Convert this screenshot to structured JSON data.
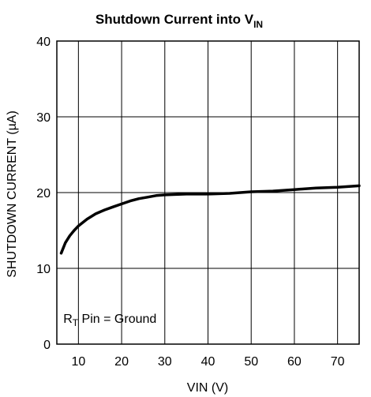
{
  "chart_data": {
    "type": "line",
    "title": {
      "main": "Shutdown Current into V",
      "sub": "IN"
    },
    "xlabel": "VIN (V)",
    "ylabel": "SHUTDOWN CURRENT (µA)",
    "xlim": [
      5,
      75
    ],
    "ylim": [
      0,
      40
    ],
    "x_ticks": [
      10,
      20,
      30,
      40,
      50,
      60,
      70
    ],
    "y_ticks": [
      0,
      10,
      20,
      30,
      40
    ],
    "x_tick_labels": [
      "10",
      "20",
      "30",
      "40",
      "50",
      "60",
      "70"
    ],
    "y_tick_labels": [
      "0",
      "10",
      "20",
      "30",
      "40"
    ],
    "grid": true,
    "series": [
      {
        "color": "#000000",
        "points": [
          [
            6,
            12.0
          ],
          [
            7,
            13.4
          ],
          [
            8,
            14.3
          ],
          [
            9,
            15.0
          ],
          [
            10,
            15.6
          ],
          [
            12,
            16.5
          ],
          [
            14,
            17.2
          ],
          [
            16,
            17.7
          ],
          [
            18,
            18.1
          ],
          [
            20,
            18.5
          ],
          [
            22,
            18.9
          ],
          [
            24,
            19.2
          ],
          [
            26,
            19.4
          ],
          [
            28,
            19.6
          ],
          [
            30,
            19.7
          ],
          [
            35,
            19.8
          ],
          [
            40,
            19.8
          ],
          [
            45,
            19.9
          ],
          [
            50,
            20.1
          ],
          [
            55,
            20.2
          ],
          [
            60,
            20.4
          ],
          [
            65,
            20.6
          ],
          [
            70,
            20.7
          ],
          [
            75,
            20.9
          ]
        ]
      }
    ],
    "annotation": {
      "r": "R",
      "r_sub": "T",
      "rest": " Pin = Ground",
      "x": 6.5,
      "y": 2.8
    }
  }
}
